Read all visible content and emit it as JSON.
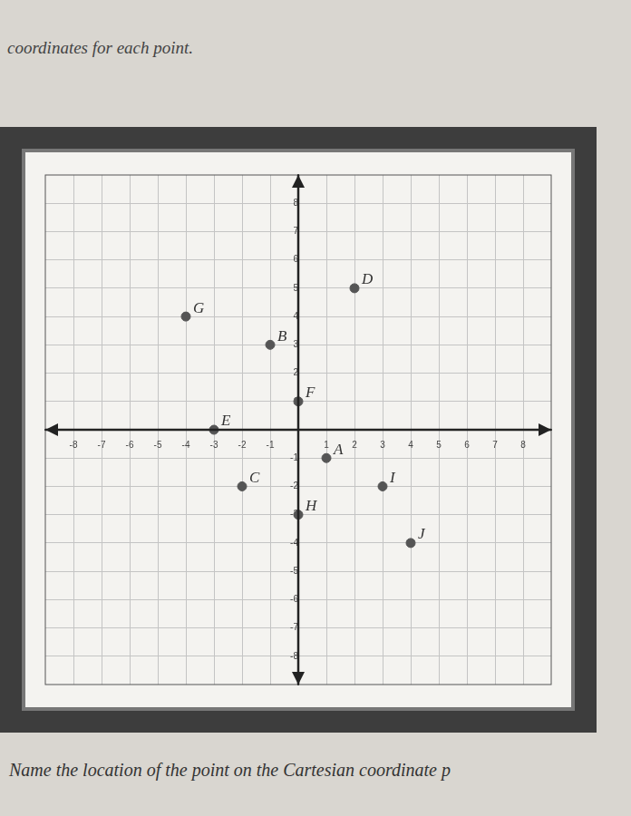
{
  "chart_data": {
    "type": "scatter",
    "title": "coordinates for each point.",
    "annotations": [
      "Name the location of the point on the Cartesian coordinate p"
    ],
    "point_labels": [
      "A",
      "B",
      "C",
      "D",
      "E",
      "F",
      "G",
      "H",
      "I",
      "J"
    ],
    "x": [
      1,
      -1,
      -2,
      2,
      -3,
      0,
      -4,
      0,
      3,
      4
    ],
    "values": [
      -1,
      3,
      -2,
      5,
      0,
      1,
      4,
      -3,
      -2,
      -4
    ],
    "color": "#555555",
    "marker": "circle",
    "grid": true,
    "xlim": [
      -9,
      9
    ],
    "xticks": [
      -8,
      -7,
      -6,
      -5,
      -4,
      -3,
      -2,
      -1,
      1,
      2,
      3,
      4,
      5,
      6,
      7,
      8
    ],
    "ylim": [
      -9,
      9
    ],
    "yticks": [
      -8,
      -7,
      -6,
      -5,
      -4,
      -3,
      -2,
      -1,
      1,
      2,
      3,
      4,
      5,
      6,
      7,
      8
    ]
  }
}
